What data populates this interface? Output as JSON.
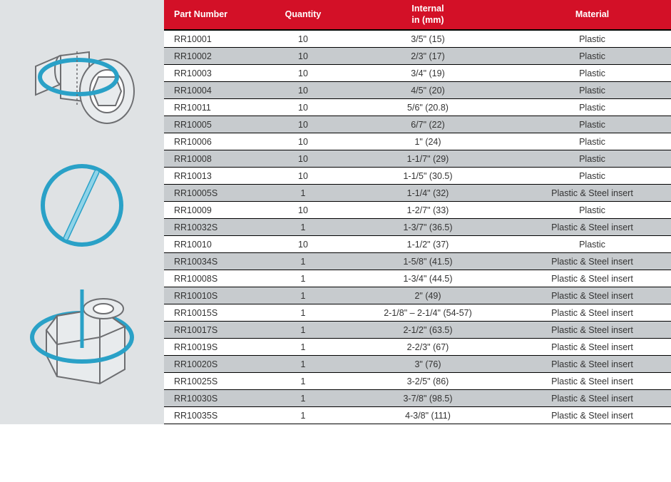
{
  "header": {
    "part": "Part Number",
    "qty": "Quantity",
    "internal_l1": "Internal",
    "internal_l2": "in (mm)",
    "material": "Material"
  },
  "colors": {
    "header_bg": "#d31027",
    "header_text": "#ffffff",
    "row_alt_bg": "#c7cbce",
    "row_bg": "#ffffff",
    "sidebar_bg": "#dfe2e4",
    "border": "#000000",
    "text": "#333333",
    "diagram_stroke": "#2aa1c7",
    "diagram_fill": "#e8ebed",
    "diagram_line": "#6d6e71"
  },
  "rows": [
    {
      "part": "RR10001",
      "qty": "10",
      "internal": "3/5\" (15)",
      "material": "Plastic"
    },
    {
      "part": "RR10002",
      "qty": "10",
      "internal": "2/3\" (17)",
      "material": "Plastic"
    },
    {
      "part": "RR10003",
      "qty": "10",
      "internal": "3/4\" (19)",
      "material": "Plastic"
    },
    {
      "part": "RR10004",
      "qty": "10",
      "internal": "4/5\" (20)",
      "material": "Plastic"
    },
    {
      "part": "RR10011",
      "qty": "10",
      "internal": "5/6\" (20.8)",
      "material": "Plastic"
    },
    {
      "part": "RR10005",
      "qty": "10",
      "internal": "6/7\" (22)",
      "material": "Plastic"
    },
    {
      "part": "RR10006",
      "qty": "10",
      "internal": "1\" (24)",
      "material": "Plastic"
    },
    {
      "part": "RR10008",
      "qty": "10",
      "internal": "1-1/7\" (29)",
      "material": "Plastic"
    },
    {
      "part": "RR10013",
      "qty": "10",
      "internal": "1-1/5\" (30.5)",
      "material": "Plastic"
    },
    {
      "part": "RR10005S",
      "qty": "1",
      "internal": "1-1/4\" (32)",
      "material": "Plastic & Steel insert"
    },
    {
      "part": "RR10009",
      "qty": "10",
      "internal": "1-2/7\" (33)",
      "material": "Plastic"
    },
    {
      "part": "RR10032S",
      "qty": "1",
      "internal": "1-3/7\" (36.5)",
      "material": "Plastic & Steel insert"
    },
    {
      "part": "RR10010",
      "qty": "10",
      "internal": "1-1/2\" (37)",
      "material": "Plastic"
    },
    {
      "part": "RR10034S",
      "qty": "1",
      "internal": "1-5/8\" (41.5)",
      "material": "Plastic & Steel insert"
    },
    {
      "part": "RR10008S",
      "qty": "1",
      "internal": "1-3/4\" (44.5)",
      "material": "Plastic & Steel insert"
    },
    {
      "part": "RR10010S",
      "qty": "1",
      "internal": "2\" (49)",
      "material": "Plastic & Steel insert"
    },
    {
      "part": "RR10015S",
      "qty": "1",
      "internal": "2-1/8\" – 2-1/4\" (54-57)",
      "material": "Plastic & Steel insert"
    },
    {
      "part": "RR10017S",
      "qty": "1",
      "internal": "2-1/2\" (63.5)",
      "material": "Plastic & Steel insert"
    },
    {
      "part": "RR10019S",
      "qty": "1",
      "internal": "2-2/3\" (67)",
      "material": "Plastic & Steel insert"
    },
    {
      "part": "RR10020S",
      "qty": "1",
      "internal": "3\" (76)",
      "material": "Plastic & Steel insert"
    },
    {
      "part": "RR10025S",
      "qty": "1",
      "internal": "3-2/5\" (86)",
      "material": "Plastic & Steel insert"
    },
    {
      "part": "RR10030S",
      "qty": "1",
      "internal": "3-7/8\" (98.5)",
      "material": "Plastic & Steel insert"
    },
    {
      "part": "RR10035S",
      "qty": "1",
      "internal": "4-3/8\" (111)",
      "material": "Plastic & Steel insert"
    }
  ]
}
